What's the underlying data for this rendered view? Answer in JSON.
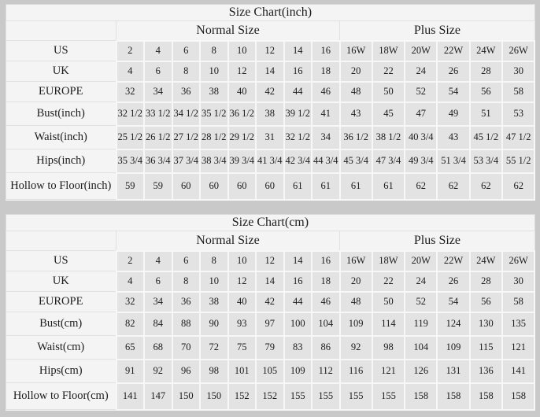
{
  "colors": {
    "page_background": "#c9c9c9",
    "panel_background": "#f4f4f4",
    "data_cell_background": "#e3e3e3",
    "grid_line": "#f7f7f7",
    "text": "#1c1c1c"
  },
  "tables": [
    {
      "title": "Size Chart(inch)",
      "normal_group_label": "Normal Size",
      "plus_group_label": "Plus Size",
      "rows": [
        {
          "label": "US",
          "normal": [
            "2",
            "4",
            "6",
            "8",
            "10",
            "12",
            "14",
            "16"
          ],
          "plus": [
            "16W",
            "18W",
            "20W",
            "22W",
            "24W",
            "26W"
          ]
        },
        {
          "label": "UK",
          "normal": [
            "4",
            "6",
            "8",
            "10",
            "12",
            "14",
            "16",
            "18"
          ],
          "plus": [
            "20",
            "22",
            "24",
            "26",
            "28",
            "30"
          ]
        },
        {
          "label": "EUROPE",
          "normal": [
            "32",
            "34",
            "36",
            "38",
            "40",
            "42",
            "44",
            "46"
          ],
          "plus": [
            "48",
            "50",
            "52",
            "54",
            "56",
            "58"
          ]
        },
        {
          "label": "Bust(inch)",
          "normal": [
            "32 1/2",
            "33 1/2",
            "34 1/2",
            "35 1/2",
            "36 1/2",
            "38",
            "39 1/2",
            "41"
          ],
          "plus": [
            "43",
            "45",
            "47",
            "49",
            "51",
            "53"
          ]
        },
        {
          "label": "Waist(inch)",
          "normal": [
            "25 1/2",
            "26 1/2",
            "27 1/2",
            "28 1/2",
            "29 1/2",
            "31",
            "32 1/2",
            "34"
          ],
          "plus": [
            "36 1/2",
            "38 1/2",
            "40 3/4",
            "43",
            "45 1/2",
            "47 1/2"
          ]
        },
        {
          "label": "Hips(inch)",
          "normal": [
            "35 3/4",
            "36 3/4",
            "37 3/4",
            "38 3/4",
            "39 3/4",
            "41 3/4",
            "42 3/4",
            "44 3/4"
          ],
          "plus": [
            "45 3/4",
            "47 3/4",
            "49 3/4",
            "51 3/4",
            "53 3/4",
            "55 1/2"
          ]
        },
        {
          "label": "Hollow to Floor(inch)",
          "normal": [
            "59",
            "59",
            "60",
            "60",
            "60",
            "60",
            "61",
            "61"
          ],
          "plus": [
            "61",
            "61",
            "62",
            "62",
            "62",
            "62"
          ]
        }
      ]
    },
    {
      "title": "Size Chart(cm)",
      "normal_group_label": "Normal Size",
      "plus_group_label": "Plus Size",
      "rows": [
        {
          "label": "US",
          "normal": [
            "2",
            "4",
            "6",
            "8",
            "10",
            "12",
            "14",
            "16"
          ],
          "plus": [
            "16W",
            "18W",
            "20W",
            "22W",
            "24W",
            "26W"
          ]
        },
        {
          "label": "UK",
          "normal": [
            "4",
            "6",
            "8",
            "10",
            "12",
            "14",
            "16",
            "18"
          ],
          "plus": [
            "20",
            "22",
            "24",
            "26",
            "28",
            "30"
          ]
        },
        {
          "label": "EUROPE",
          "normal": [
            "32",
            "34",
            "36",
            "38",
            "40",
            "42",
            "44",
            "46"
          ],
          "plus": [
            "48",
            "50",
            "52",
            "54",
            "56",
            "58"
          ]
        },
        {
          "label": "Bust(cm)",
          "normal": [
            "82",
            "84",
            "88",
            "90",
            "93",
            "97",
            "100",
            "104"
          ],
          "plus": [
            "109",
            "114",
            "119",
            "124",
            "130",
            "135"
          ]
        },
        {
          "label": "Waist(cm)",
          "normal": [
            "65",
            "68",
            "70",
            "72",
            "75",
            "79",
            "83",
            "86"
          ],
          "plus": [
            "92",
            "98",
            "104",
            "109",
            "115",
            "121"
          ]
        },
        {
          "label": "Hips(cm)",
          "normal": [
            "91",
            "92",
            "96",
            "98",
            "101",
            "105",
            "109",
            "112"
          ],
          "plus": [
            "116",
            "121",
            "126",
            "131",
            "136",
            "141"
          ]
        },
        {
          "label": "Hollow to Floor(cm)",
          "normal": [
            "141",
            "147",
            "150",
            "150",
            "152",
            "152",
            "155",
            "155"
          ],
          "plus": [
            "155",
            "155",
            "158",
            "158",
            "158",
            "158"
          ]
        }
      ]
    }
  ]
}
